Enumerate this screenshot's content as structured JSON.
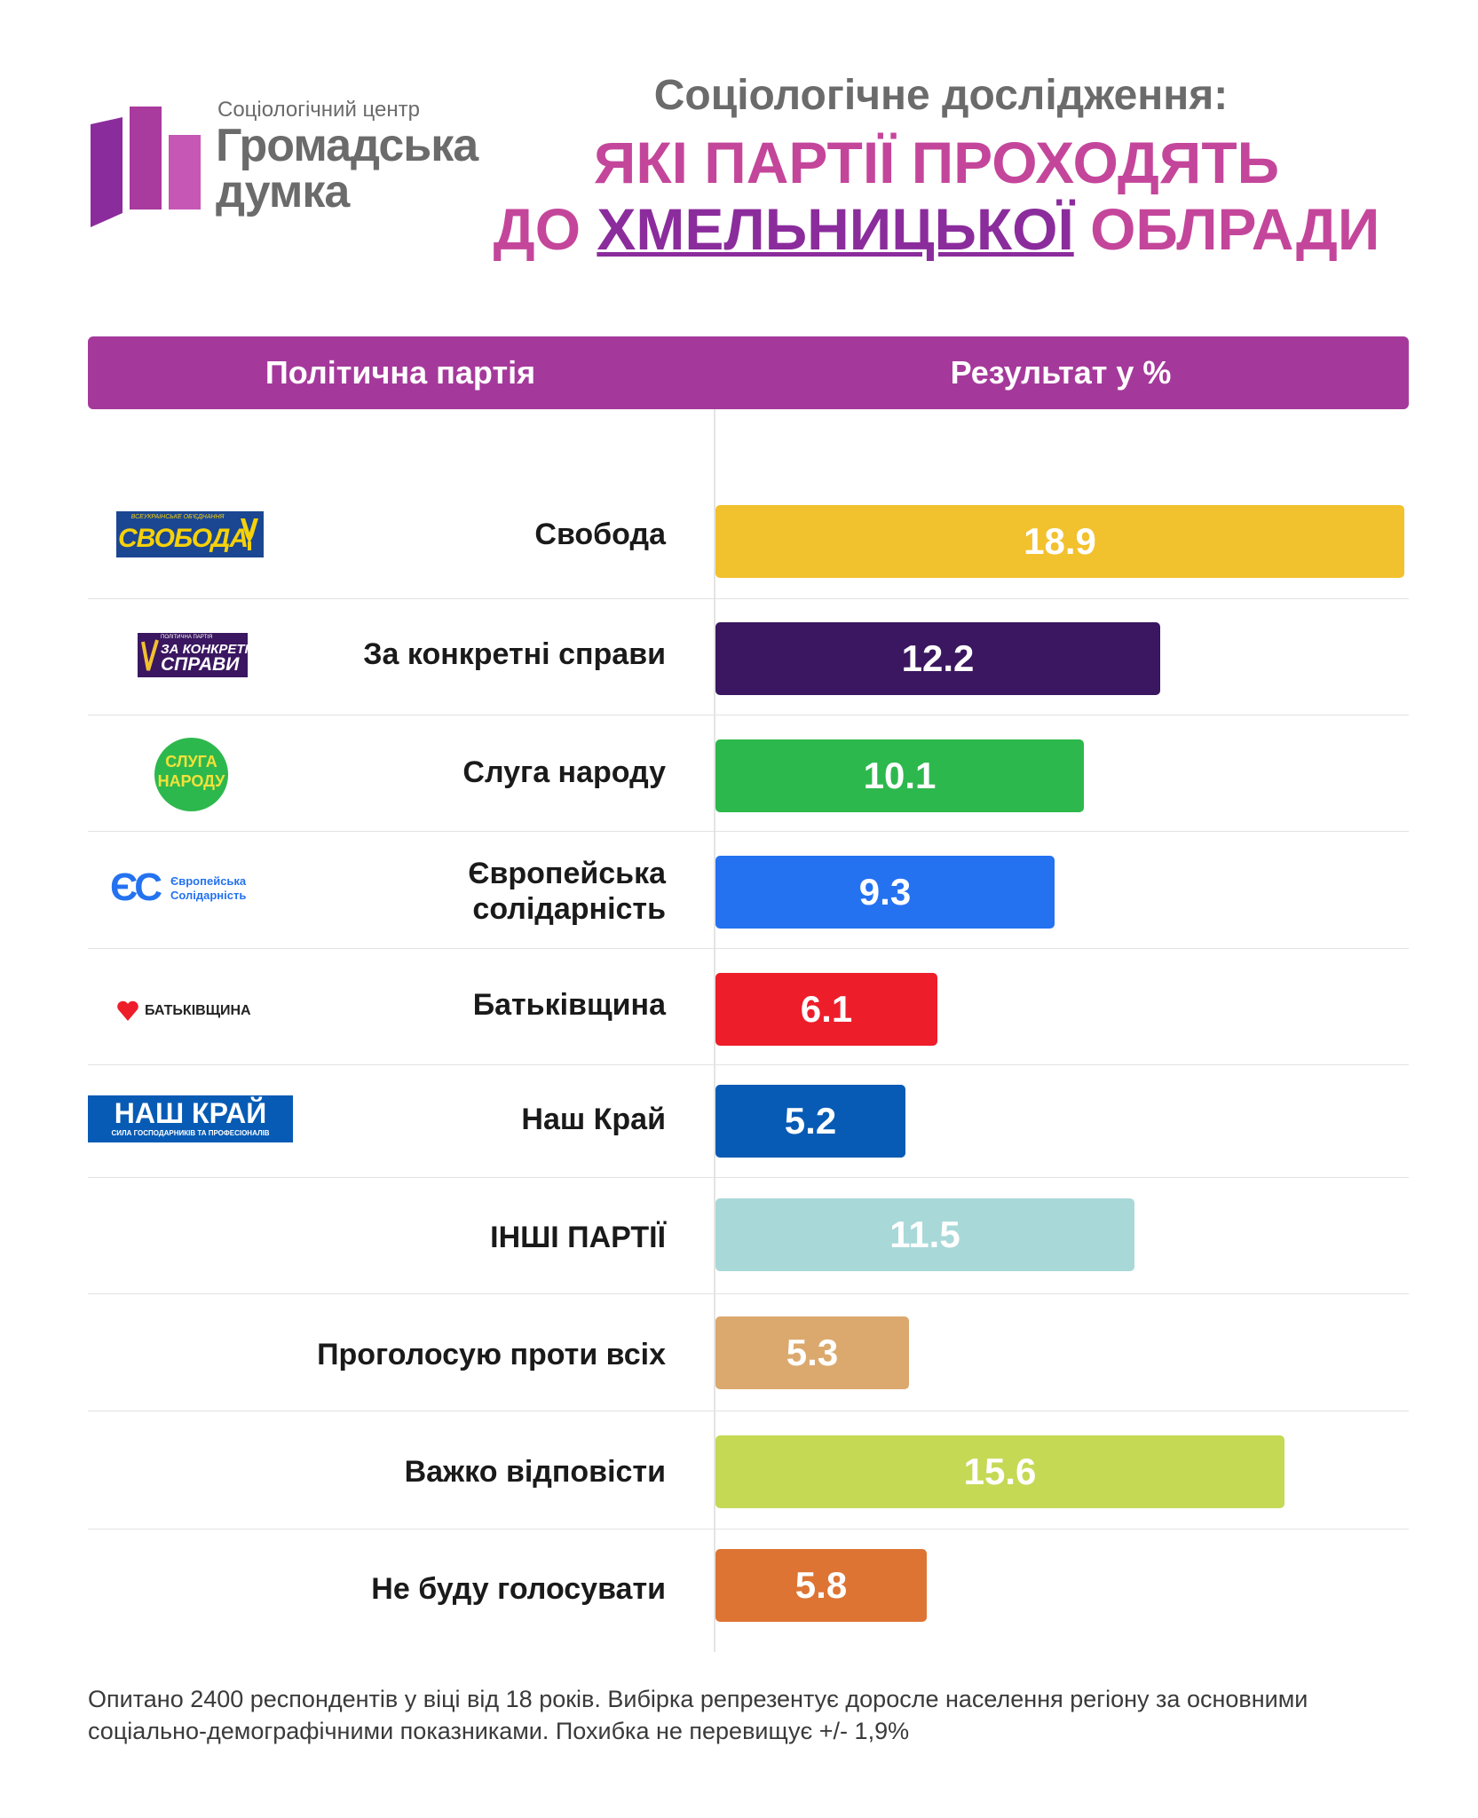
{
  "logo": {
    "small": "Соціологічний центр",
    "line1": "Громадська",
    "line2": "думка",
    "colors": [
      "#8b2c9c",
      "#a93a9e",
      "#c657b5"
    ]
  },
  "title": {
    "line1": "Соціологічне дослідження:",
    "line2": "ЯКІ ПАРТІЇ ПРОХОДЯТЬ",
    "line3_pre": "ДО ",
    "line3_mid": "ХМЕЛЬНИЦЬКОЇ",
    "line3_post": " ОБЛРАДИ"
  },
  "header": {
    "party": "Політична партія",
    "result": "Результат у %"
  },
  "party_logos": {
    "svoboda": {
      "top": "ВСЕУКРАЇНСЬКЕ ОБ'ЄДНАННЯ",
      "main": "СВОБОДА",
      "icon": "trident-icon"
    },
    "zks": {
      "top": "ПОЛІТИЧНА ПАРТІЯ",
      "line1": "ЗА КОНКРЕТНІ",
      "line2": "СПРАВИ"
    },
    "sluga": {
      "line1": "СЛУГА",
      "line2": "НАРОДУ"
    },
    "es": {
      "mark": "ЄС",
      "line1": "Європейська",
      "line2": "Солідарність"
    },
    "bat": {
      "main": "БАТЬКІВЩИНА",
      "icon": "heart-icon"
    },
    "nashkrai": {
      "main": "НАШ КРАЙ",
      "sub": "СИЛА ГОСПОДАРНИКІВ ТА ПРОФЕСІОНАЛІВ"
    }
  },
  "chart_data": {
    "type": "bar",
    "orientation": "horizontal",
    "categories": [
      "Свобода",
      "За конкретні справи",
      "Слуга народу",
      "Європейська солідарність",
      "Батьківщина",
      "Наш Край",
      "ІНШІ ПАРТІЇ",
      "Проголосую проти всіх",
      "Важко відповісти",
      "Не буду голосувати"
    ],
    "values": [
      18.9,
      12.2,
      10.1,
      9.3,
      6.1,
      5.2,
      11.5,
      5.3,
      15.6,
      5.8
    ],
    "labels": [
      "18.9",
      "12.2",
      "10.1",
      "9.3",
      "6.1",
      "5.2",
      "11.5",
      "5.3",
      "15.6",
      "5.8"
    ],
    "colors": [
      "#f2c12e",
      "#3a1760",
      "#2db84d",
      "#2472f0",
      "#ee1d2a",
      "#075bb5",
      "#a9d8d8",
      "#dba96e",
      "#c5d955",
      "#dd7434"
    ],
    "xlim": [
      0,
      18.9
    ],
    "ylabel": "Політична партія",
    "xlabel": "Результат у %"
  },
  "footnote": "Опитано 2400 респондентів у віці від 18 років. Вибірка репрезентує доросле населення регіону за основними соціально-демографічними показниками. Похибка не перевищує +/- 1,9%"
}
